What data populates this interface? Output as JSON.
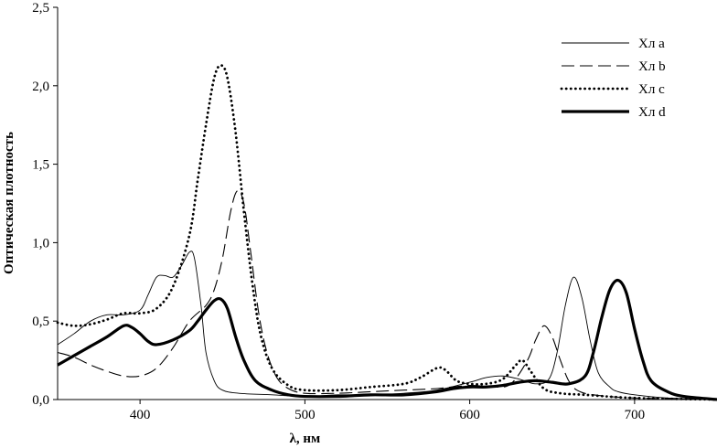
{
  "chart_data": {
    "type": "line",
    "title": "",
    "xlabel": "λ, нм",
    "ylabel": "Оптическая плотность",
    "xlim": [
      350,
      750
    ],
    "ylim": [
      0,
      2.5
    ],
    "x_ticks": [
      400,
      500,
      600,
      700
    ],
    "y_ticks": [
      0.0,
      0.5,
      1.0,
      1.5,
      2.0,
      2.5
    ],
    "y_tick_labels": [
      "0,0",
      "0,5",
      "1,0",
      "1,5",
      "2,0",
      "2,5"
    ],
    "grid": false,
    "legend_position": "top-right",
    "series": [
      {
        "name": "Хл a",
        "style": "thin-solid",
        "points": [
          [
            350,
            0.35
          ],
          [
            360,
            0.42
          ],
          [
            370,
            0.5
          ],
          [
            380,
            0.54
          ],
          [
            390,
            0.54
          ],
          [
            400,
            0.57
          ],
          [
            405,
            0.67
          ],
          [
            410,
            0.78
          ],
          [
            415,
            0.79
          ],
          [
            420,
            0.78
          ],
          [
            425,
            0.85
          ],
          [
            430,
            0.94
          ],
          [
            433,
            0.9
          ],
          [
            437,
            0.6
          ],
          [
            440,
            0.3
          ],
          [
            445,
            0.12
          ],
          [
            450,
            0.06
          ],
          [
            460,
            0.04
          ],
          [
            480,
            0.03
          ],
          [
            500,
            0.02
          ],
          [
            520,
            0.03
          ],
          [
            540,
            0.03
          ],
          [
            560,
            0.04
          ],
          [
            580,
            0.06
          ],
          [
            600,
            0.11
          ],
          [
            610,
            0.14
          ],
          [
            620,
            0.15
          ],
          [
            630,
            0.13
          ],
          [
            640,
            0.1
          ],
          [
            648,
            0.13
          ],
          [
            653,
            0.3
          ],
          [
            658,
            0.6
          ],
          [
            663,
            0.78
          ],
          [
            668,
            0.65
          ],
          [
            673,
            0.38
          ],
          [
            678,
            0.17
          ],
          [
            685,
            0.08
          ],
          [
            690,
            0.05
          ],
          [
            700,
            0.03
          ],
          [
            720,
            0.01
          ],
          [
            750,
            0.0
          ]
        ]
      },
      {
        "name": "Хл b",
        "style": "dashed",
        "points": [
          [
            350,
            0.3
          ],
          [
            360,
            0.27
          ],
          [
            370,
            0.22
          ],
          [
            380,
            0.18
          ],
          [
            390,
            0.15
          ],
          [
            400,
            0.15
          ],
          [
            410,
            0.2
          ],
          [
            420,
            0.33
          ],
          [
            430,
            0.5
          ],
          [
            440,
            0.6
          ],
          [
            445,
            0.7
          ],
          [
            450,
            0.9
          ],
          [
            455,
            1.2
          ],
          [
            459,
            1.33
          ],
          [
            463,
            1.25
          ],
          [
            467,
            0.95
          ],
          [
            472,
            0.55
          ],
          [
            477,
            0.3
          ],
          [
            483,
            0.14
          ],
          [
            490,
            0.07
          ],
          [
            500,
            0.04
          ],
          [
            520,
            0.04
          ],
          [
            540,
            0.05
          ],
          [
            560,
            0.06
          ],
          [
            580,
            0.07
          ],
          [
            600,
            0.09
          ],
          [
            615,
            0.08
          ],
          [
            625,
            0.1
          ],
          [
            635,
            0.25
          ],
          [
            640,
            0.38
          ],
          [
            645,
            0.47
          ],
          [
            650,
            0.4
          ],
          [
            655,
            0.25
          ],
          [
            660,
            0.12
          ],
          [
            665,
            0.06
          ],
          [
            675,
            0.03
          ],
          [
            700,
            0.01
          ],
          [
            750,
            0.0
          ]
        ]
      },
      {
        "name": "Хл c",
        "style": "dotted",
        "points": [
          [
            350,
            0.49
          ],
          [
            360,
            0.47
          ],
          [
            370,
            0.48
          ],
          [
            380,
            0.51
          ],
          [
            390,
            0.55
          ],
          [
            400,
            0.55
          ],
          [
            410,
            0.58
          ],
          [
            420,
            0.72
          ],
          [
            430,
            1.05
          ],
          [
            435,
            1.4
          ],
          [
            440,
            1.75
          ],
          [
            445,
            2.05
          ],
          [
            449,
            2.13
          ],
          [
            453,
            2.05
          ],
          [
            458,
            1.7
          ],
          [
            463,
            1.2
          ],
          [
            468,
            0.75
          ],
          [
            473,
            0.42
          ],
          [
            480,
            0.2
          ],
          [
            490,
            0.09
          ],
          [
            500,
            0.06
          ],
          [
            520,
            0.06
          ],
          [
            540,
            0.08
          ],
          [
            560,
            0.1
          ],
          [
            570,
            0.14
          ],
          [
            580,
            0.2
          ],
          [
            585,
            0.19
          ],
          [
            592,
            0.12
          ],
          [
            600,
            0.1
          ],
          [
            610,
            0.1
          ],
          [
            620,
            0.13
          ],
          [
            628,
            0.22
          ],
          [
            632,
            0.25
          ],
          [
            637,
            0.18
          ],
          [
            645,
            0.07
          ],
          [
            655,
            0.04
          ],
          [
            670,
            0.03
          ],
          [
            700,
            0.01
          ],
          [
            750,
            0.0
          ]
        ]
      },
      {
        "name": "Хл d",
        "style": "thick-solid",
        "points": [
          [
            350,
            0.22
          ],
          [
            360,
            0.28
          ],
          [
            370,
            0.34
          ],
          [
            380,
            0.4
          ],
          [
            390,
            0.47
          ],
          [
            395,
            0.46
          ],
          [
            400,
            0.42
          ],
          [
            405,
            0.37
          ],
          [
            410,
            0.35
          ],
          [
            420,
            0.38
          ],
          [
            430,
            0.44
          ],
          [
            435,
            0.5
          ],
          [
            440,
            0.57
          ],
          [
            445,
            0.63
          ],
          [
            449,
            0.64
          ],
          [
            453,
            0.58
          ],
          [
            458,
            0.4
          ],
          [
            463,
            0.25
          ],
          [
            470,
            0.12
          ],
          [
            480,
            0.06
          ],
          [
            490,
            0.03
          ],
          [
            500,
            0.02
          ],
          [
            520,
            0.02
          ],
          [
            540,
            0.03
          ],
          [
            560,
            0.03
          ],
          [
            580,
            0.05
          ],
          [
            590,
            0.07
          ],
          [
            600,
            0.08
          ],
          [
            610,
            0.08
          ],
          [
            620,
            0.09
          ],
          [
            630,
            0.11
          ],
          [
            640,
            0.12
          ],
          [
            650,
            0.11
          ],
          [
            660,
            0.1
          ],
          [
            670,
            0.15
          ],
          [
            675,
            0.3
          ],
          [
            680,
            0.52
          ],
          [
            685,
            0.7
          ],
          [
            690,
            0.76
          ],
          [
            695,
            0.68
          ],
          [
            700,
            0.45
          ],
          [
            705,
            0.25
          ],
          [
            710,
            0.12
          ],
          [
            720,
            0.05
          ],
          [
            730,
            0.02
          ],
          [
            750,
            0.0
          ]
        ]
      }
    ]
  }
}
